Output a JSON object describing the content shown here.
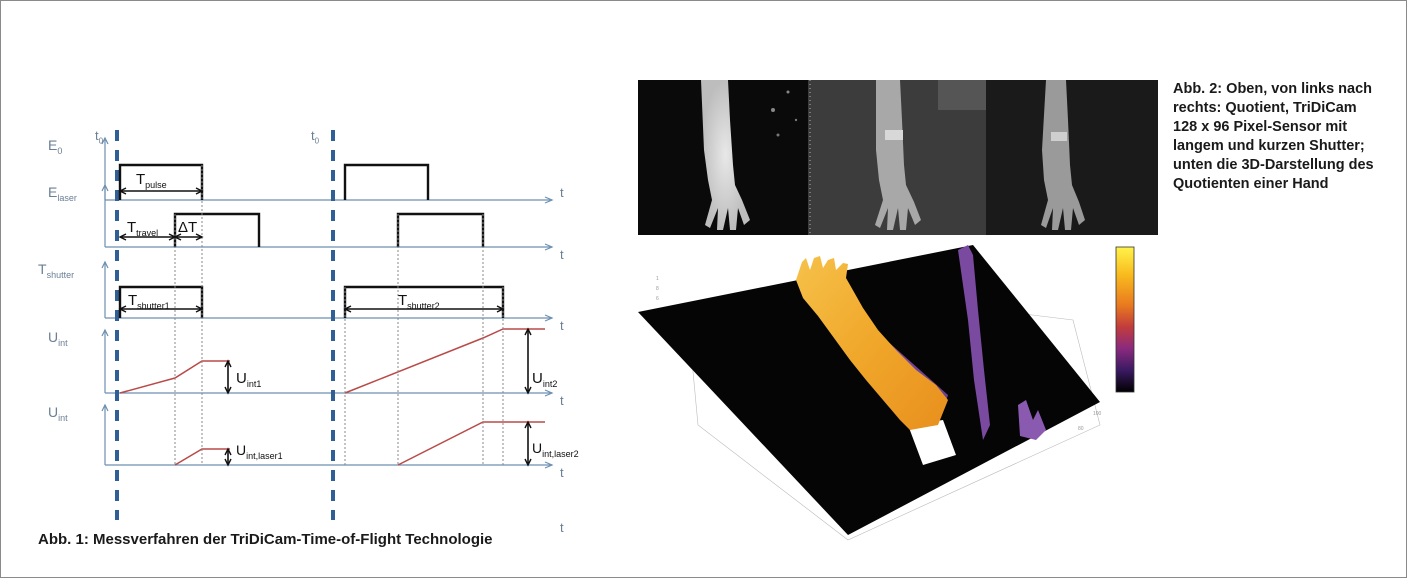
{
  "caption_left": "Abb. 1: Messverfahren der TriDiCam-Time-of-Flight Technologie",
  "caption_right": "Abb. 2: Oben, von links nach rechts: Quotient, TriDiCam 128 x 96 Pixel-Sensor mit langem und kurzen Shutter; unten die 3D-Darstellung des Quotienten einer Hand",
  "timing": {
    "axis_t": "t",
    "t0": {
      "main": "t",
      "sub": "0"
    },
    "rows": [
      {
        "main": "E",
        "sub": "0"
      },
      {
        "main": "E",
        "sub": "laser"
      },
      {
        "main": "T",
        "sub": "shutter"
      },
      {
        "main": "U",
        "sub": "int"
      },
      {
        "main": "U",
        "sub": "int"
      }
    ],
    "labels": {
      "t_pulse": {
        "main": "T",
        "sub": "pulse"
      },
      "t_travel": {
        "main": "T",
        "sub": "travel"
      },
      "delta_t": "ΔT",
      "t_shutter1": {
        "main": "T",
        "sub": "shutter1"
      },
      "t_shutter2": {
        "main": "T",
        "sub": "shutter2"
      },
      "u_int1": {
        "main": "U",
        "sub": "int1"
      },
      "u_int2": {
        "main": "U",
        "sub": "int2"
      },
      "u_laser1": {
        "main": "U",
        "sub": "int,laser1"
      },
      "u_laser2": {
        "main": "U",
        "sub": "int,laser2"
      }
    }
  },
  "colors": {
    "axis": "#6d8fb0",
    "dash": "#2f5f95",
    "pulse": "#111111",
    "ramp": "#b94a48",
    "label": "#6b7f95",
    "colorbar": [
      "#fff34a",
      "#f8b81d",
      "#e97a1f",
      "#c23c3c",
      "#8a2a7e",
      "#3a1a62",
      "#000000"
    ]
  }
}
